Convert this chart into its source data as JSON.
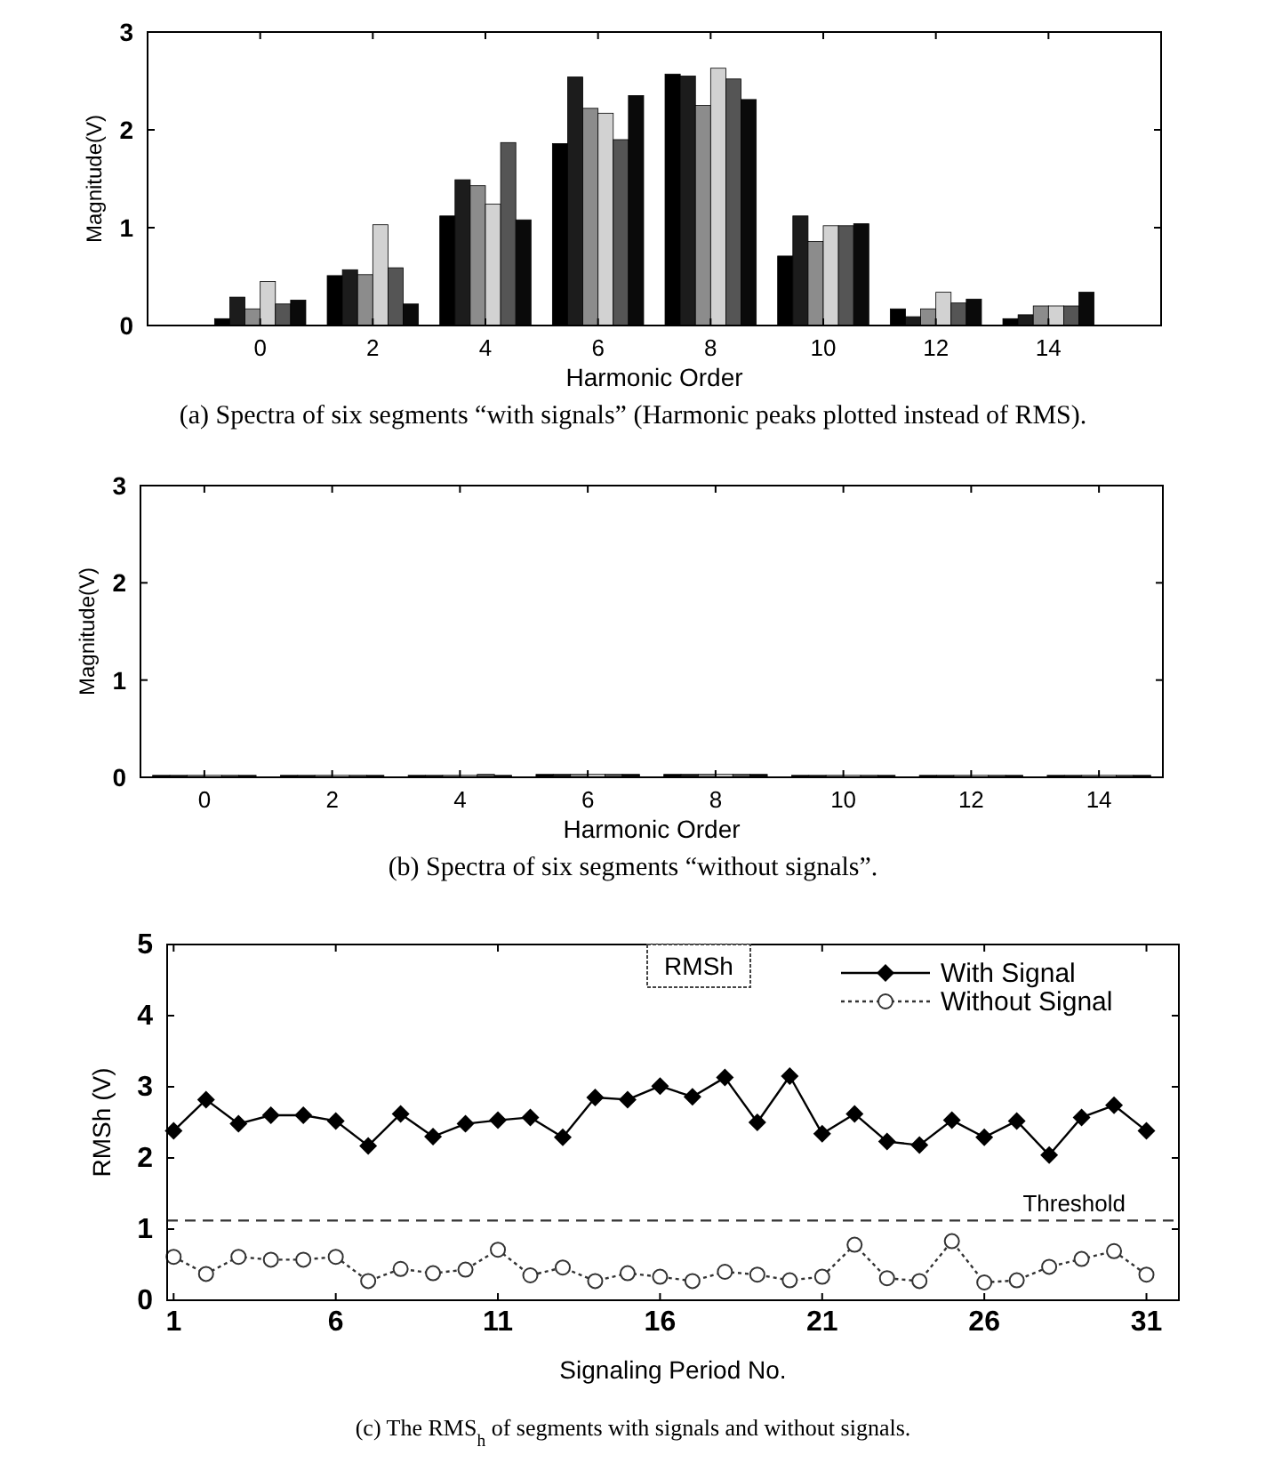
{
  "chart_data": [
    {
      "type": "bar",
      "xlabel": "Harmonic Order",
      "ylabel": "Magnitude(V)",
      "x": [
        0,
        2,
        4,
        6,
        8,
        10,
        12,
        14
      ],
      "xlim": [
        -2,
        16
      ],
      "xticks": [
        0,
        2,
        4,
        6,
        8,
        10,
        12,
        14
      ],
      "ylim": [
        0,
        3
      ],
      "yticks": [
        0,
        1,
        2,
        3
      ],
      "grid": false,
      "legend": false,
      "series": [
        {
          "color": "#000000",
          "values": [
            0.07,
            0.51,
            1.12,
            1.86,
            2.57,
            0.71,
            0.17,
            0.07
          ]
        },
        {
          "color": "#1c1c1c",
          "values": [
            0.29,
            0.57,
            1.49,
            2.54,
            2.55,
            1.12,
            0.09,
            0.11
          ]
        },
        {
          "color": "#8c8c8c",
          "values": [
            0.17,
            0.52,
            1.43,
            2.22,
            2.25,
            0.86,
            0.17,
            0.2
          ]
        },
        {
          "color": "#d2d2d2",
          "values": [
            0.45,
            1.03,
            1.24,
            2.17,
            2.63,
            1.02,
            0.34,
            0.2
          ]
        },
        {
          "color": "#555555",
          "values": [
            0.22,
            0.59,
            1.87,
            1.9,
            2.52,
            1.02,
            0.23,
            0.2
          ]
        },
        {
          "color": "#0a0a0a",
          "values": [
            0.26,
            0.22,
            1.08,
            2.35,
            2.31,
            1.04,
            0.27,
            0.34
          ]
        }
      ],
      "annotations": [
        "(a) Spectra of six segments “with signals” (Harmonic peaks plotted instead of RMS)."
      ]
    },
    {
      "type": "bar",
      "xlabel": "Harmonic Order",
      "ylabel": "Magnitude(V)",
      "x": [
        0,
        2,
        4,
        6,
        8,
        10,
        12,
        14
      ],
      "xlim": [
        -1,
        15
      ],
      "xticks": [
        0,
        2,
        4,
        6,
        8,
        10,
        12,
        14
      ],
      "ylim": [
        0,
        3
      ],
      "yticks": [
        0,
        1,
        2,
        3
      ],
      "grid": false,
      "legend": false,
      "series": [
        {
          "color": "#000000",
          "values": [
            0.02,
            0.02,
            0.02,
            0.03,
            0.03,
            0.02,
            0.02,
            0.02
          ]
        },
        {
          "color": "#1c1c1c",
          "values": [
            0.02,
            0.02,
            0.02,
            0.03,
            0.03,
            0.02,
            0.02,
            0.02
          ]
        },
        {
          "color": "#8c8c8c",
          "values": [
            0.02,
            0.02,
            0.02,
            0.03,
            0.03,
            0.02,
            0.02,
            0.02
          ]
        },
        {
          "color": "#d2d2d2",
          "values": [
            0.02,
            0.02,
            0.02,
            0.03,
            0.03,
            0.02,
            0.02,
            0.02
          ]
        },
        {
          "color": "#555555",
          "values": [
            0.02,
            0.02,
            0.03,
            0.03,
            0.03,
            0.02,
            0.02,
            0.02
          ]
        },
        {
          "color": "#0a0a0a",
          "values": [
            0.02,
            0.02,
            0.02,
            0.03,
            0.03,
            0.02,
            0.02,
            0.02
          ]
        }
      ],
      "annotations": [
        "(b) Spectra of six segments “without signals”."
      ]
    },
    {
      "type": "line",
      "xlabel": "Signaling Period No.",
      "ylabel": "RMSh (V)",
      "x": [
        1,
        2,
        3,
        4,
        5,
        6,
        7,
        8,
        9,
        10,
        11,
        12,
        13,
        14,
        15,
        16,
        17,
        18,
        19,
        20,
        21,
        22,
        23,
        24,
        25,
        26,
        27,
        28,
        29,
        30,
        31
      ],
      "xlim": [
        0.8,
        32
      ],
      "xticks": [
        1,
        6,
        11,
        16,
        21,
        26,
        31
      ],
      "ylim": [
        0,
        5
      ],
      "yticks": [
        0,
        1,
        2,
        3,
        4,
        5
      ],
      "grid": false,
      "legend": "top right",
      "series": [
        {
          "name": "With Signal",
          "color": "#000000",
          "marker": "diamond",
          "line_style": "solid",
          "values": [
            2.38,
            2.82,
            2.48,
            2.6,
            2.6,
            2.52,
            2.17,
            2.62,
            2.3,
            2.48,
            2.53,
            2.57,
            2.29,
            2.85,
            2.82,
            3.01,
            2.86,
            3.13,
            2.5,
            3.15,
            2.34,
            2.62,
            2.23,
            2.18,
            2.53,
            2.29,
            2.52,
            2.04,
            2.57,
            2.74,
            2.38
          ]
        },
        {
          "name": "Without Signal",
          "color": "#333333",
          "marker": "circle",
          "line_style": "dotted",
          "values": [
            0.61,
            0.37,
            0.61,
            0.57,
            0.57,
            0.61,
            0.27,
            0.44,
            0.38,
            0.43,
            0.71,
            0.35,
            0.46,
            0.27,
            0.38,
            0.33,
            0.27,
            0.4,
            0.36,
            0.28,
            0.33,
            0.78,
            0.31,
            0.27,
            0.83,
            0.25,
            0.28,
            0.47,
            0.58,
            0.69,
            0.36
          ]
        }
      ],
      "ref_lines": [
        {
          "axis": "y",
          "value": 1.12,
          "label": "Threshold",
          "line_style": "dashed",
          "color": "#333333"
        }
      ],
      "annotations": [
        "RMSh",
        "(c) The RMS$_{h}$ of segments with signals and without signals."
      ]
    }
  ]
}
